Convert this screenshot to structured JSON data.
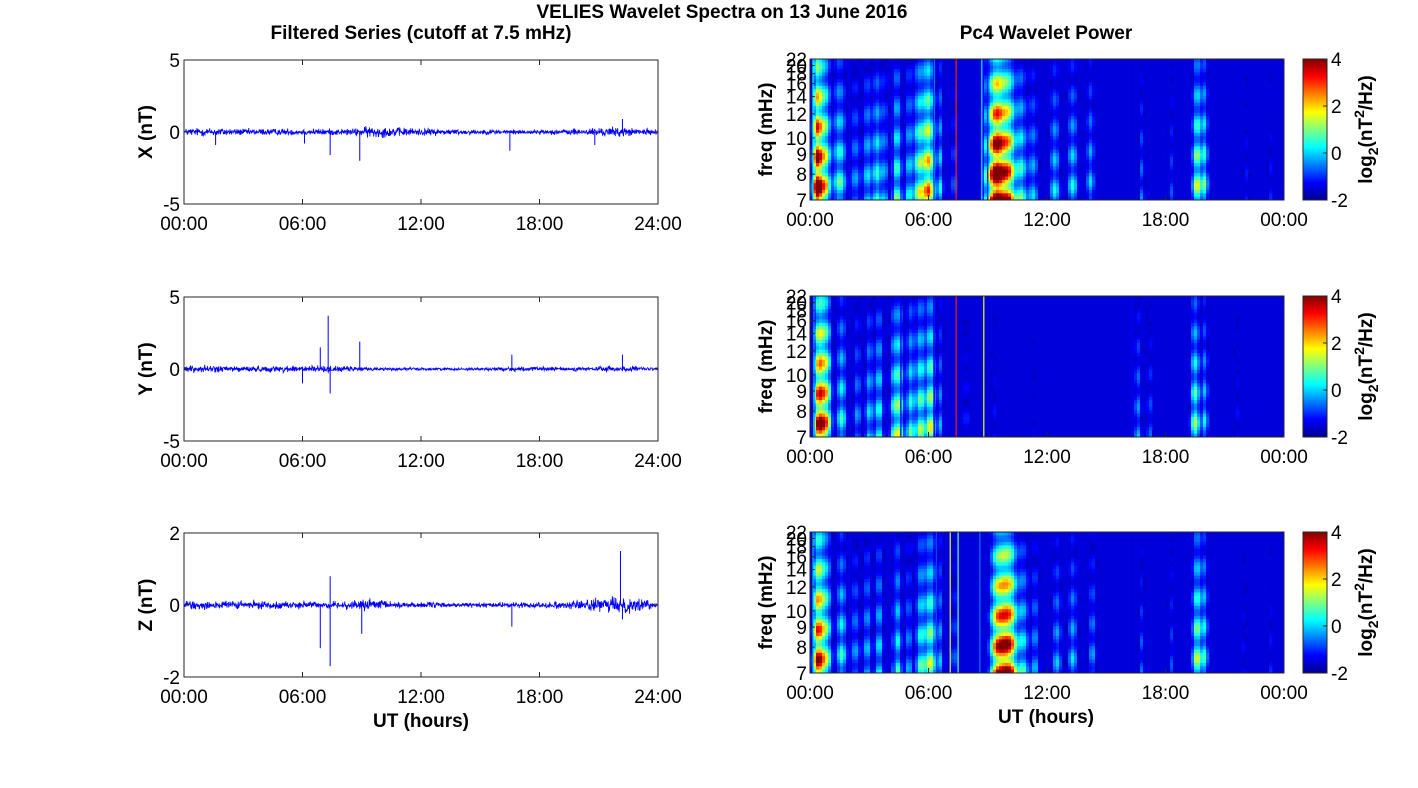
{
  "figure": {
    "title": "VELIES Wavelet Spectra on 13 June 2016",
    "left_title": "Filtered Series (cutoff at 7.5 mHz)",
    "right_title": "Pc4 Wavelet Power",
    "xlabel": "UT (hours)"
  },
  "chart_data": [
    {
      "type": "line",
      "panel": "left",
      "ylabel": "X (nT)",
      "ylim": [
        -5,
        5
      ],
      "yticks": [
        5,
        0,
        -5
      ],
      "xticks": [
        "00:00",
        "06:00",
        "12:00",
        "18:00",
        "24:00"
      ],
      "xlim_hours": [
        0,
        24
      ],
      "color": "#0000ff",
      "amplitude_envelope": [
        [
          0,
          0.35
        ],
        [
          1.5,
          0.4
        ],
        [
          3,
          0.3
        ],
        [
          6,
          0.3
        ],
        [
          8.5,
          0.3
        ],
        [
          9.5,
          0.55
        ],
        [
          11,
          0.4
        ],
        [
          14,
          0.25
        ],
        [
          18,
          0.2
        ],
        [
          20,
          0.3
        ],
        [
          22,
          0.45
        ],
        [
          24,
          0.2
        ]
      ],
      "spikes": [
        [
          1.6,
          -0.9
        ],
        [
          6.1,
          -0.8
        ],
        [
          7.4,
          -1.6
        ],
        [
          8.9,
          -2.0
        ],
        [
          16.5,
          -1.3
        ],
        [
          20.8,
          -0.9
        ],
        [
          22.2,
          0.9
        ]
      ]
    },
    {
      "type": "line",
      "panel": "left",
      "ylabel": "Y (nT)",
      "ylim": [
        -5,
        5
      ],
      "yticks": [
        5,
        0,
        -5
      ],
      "xticks": [
        "00:00",
        "06:00",
        "12:00",
        "18:00",
        "24:00"
      ],
      "xlim_hours": [
        0,
        24
      ],
      "color": "#0000ff",
      "amplitude_envelope": [
        [
          0,
          0.35
        ],
        [
          2,
          0.3
        ],
        [
          4,
          0.25
        ],
        [
          6,
          0.35
        ],
        [
          8,
          0.25
        ],
        [
          10,
          0.15
        ],
        [
          14,
          0.12
        ],
        [
          17,
          0.2
        ],
        [
          20,
          0.18
        ],
        [
          22,
          0.3
        ],
        [
          24,
          0.12
        ]
      ],
      "spikes": [
        [
          6.0,
          -1.0
        ],
        [
          6.9,
          1.5
        ],
        [
          7.3,
          3.7
        ],
        [
          7.4,
          -1.7
        ],
        [
          8.9,
          1.9
        ],
        [
          16.6,
          1.0
        ],
        [
          22.2,
          1.0
        ]
      ]
    },
    {
      "type": "line",
      "panel": "left",
      "ylabel": "Z (nT)",
      "ylim": [
        -2,
        2
      ],
      "yticks": [
        2,
        0,
        -2
      ],
      "xticks": [
        "00:00",
        "06:00",
        "12:00",
        "18:00",
        "24:00"
      ],
      "xlim_hours": [
        0,
        24
      ],
      "color": "#0000ff",
      "amplitude_envelope": [
        [
          0,
          0.18
        ],
        [
          2,
          0.16
        ],
        [
          4,
          0.14
        ],
        [
          6,
          0.13
        ],
        [
          8,
          0.12
        ],
        [
          9.5,
          0.22
        ],
        [
          11,
          0.12
        ],
        [
          14,
          0.08
        ],
        [
          18,
          0.1
        ],
        [
          20,
          0.18
        ],
        [
          21.5,
          0.25
        ],
        [
          22.3,
          0.35
        ],
        [
          24,
          0.08
        ]
      ],
      "spikes": [
        [
          6.9,
          -1.2
        ],
        [
          7.4,
          0.8
        ],
        [
          7.4,
          -1.7
        ],
        [
          9.0,
          -0.8
        ],
        [
          16.6,
          -0.6
        ],
        [
          22.1,
          1.5
        ],
        [
          22.2,
          -0.4
        ]
      ]
    },
    {
      "type": "heatmap",
      "panel": "right",
      "ylabel": "freq (mHz)",
      "ylim": [
        7,
        22
      ],
      "yticks": [
        22,
        20,
        18,
        16,
        14,
        12,
        10,
        9,
        8,
        7
      ],
      "xlim_hours": [
        0,
        24
      ],
      "xticks": [
        "00:00",
        "06:00",
        "12:00",
        "18:00",
        "00:00"
      ],
      "colorbar": {
        "label": "log2(nT2/Hz)",
        "range": [
          -2,
          4
        ],
        "ticks": [
          4,
          2,
          0,
          -2
        ]
      },
      "background": -2,
      "streaks": [
        [
          0.3,
          0.35,
          2.5
        ],
        [
          0.5,
          0.5,
          3.5
        ],
        [
          0.85,
          0.4,
          2.0
        ],
        [
          1.5,
          0.6,
          2.0
        ],
        [
          2.3,
          0.5,
          1.2
        ],
        [
          2.9,
          0.4,
          1.5
        ],
        [
          3.4,
          0.45,
          1.8
        ],
        [
          3.8,
          0.3,
          1.2
        ],
        [
          4.4,
          0.45,
          2.0
        ],
        [
          5.0,
          0.35,
          1.5
        ],
        [
          5.5,
          0.5,
          2.2
        ],
        [
          6.0,
          0.55,
          3.2
        ],
        [
          6.6,
          0.3,
          1.5
        ],
        [
          7.3,
          0.3,
          1.0
        ],
        [
          8.9,
          0.35,
          1.2
        ],
        [
          9.3,
          0.6,
          2.5
        ],
        [
          9.6,
          0.75,
          3.8
        ],
        [
          10.1,
          0.6,
          2.8
        ],
        [
          10.7,
          0.5,
          1.8
        ],
        [
          11.3,
          0.5,
          1.3
        ],
        [
          12.4,
          0.5,
          1.5
        ],
        [
          13.3,
          0.5,
          1.6
        ],
        [
          14.2,
          0.4,
          1.4
        ],
        [
          16.8,
          0.3,
          1.0
        ],
        [
          18.3,
          0.3,
          0.8
        ],
        [
          19.6,
          0.45,
          2.5
        ],
        [
          20.0,
          0.3,
          1.8
        ],
        [
          22.1,
          0.3,
          0.6
        ],
        [
          23.3,
          0.3,
          0.6
        ]
      ],
      "lines": [
        [
          0.15,
          1.5
        ],
        [
          2.0,
          0.5
        ],
        [
          4.2,
          0.5
        ],
        [
          6.3,
          1.0
        ],
        [
          7.4,
          3.5
        ],
        [
          8.7,
          1.5
        ],
        [
          9.0,
          0.5
        ],
        [
          16.3,
          0.3
        ]
      ]
    },
    {
      "type": "heatmap",
      "panel": "right",
      "ylabel": "freq (mHz)",
      "ylim": [
        7,
        22
      ],
      "yticks": [
        22,
        20,
        18,
        16,
        14,
        12,
        10,
        9,
        8,
        7
      ],
      "xlim_hours": [
        0,
        24
      ],
      "xticks": [
        "00:00",
        "06:00",
        "12:00",
        "18:00",
        "00:00"
      ],
      "colorbar": {
        "label": "log2(nT2/Hz)",
        "range": [
          -2,
          4
        ],
        "ticks": [
          4,
          2,
          0,
          -2
        ]
      },
      "background": -2,
      "streaks": [
        [
          0.35,
          0.4,
          2.5
        ],
        [
          0.6,
          0.45,
          3.2
        ],
        [
          0.9,
          0.4,
          2.2
        ],
        [
          1.6,
          0.5,
          1.8
        ],
        [
          2.4,
          0.4,
          1.2
        ],
        [
          3.0,
          0.4,
          1.5
        ],
        [
          3.5,
          0.4,
          1.8
        ],
        [
          4.2,
          0.35,
          1.2
        ],
        [
          4.5,
          0.45,
          2.2
        ],
        [
          5.1,
          0.4,
          1.8
        ],
        [
          5.6,
          0.45,
          2.2
        ],
        [
          6.1,
          0.4,
          2.6
        ],
        [
          6.6,
          0.3,
          1.2
        ],
        [
          7.9,
          0.25,
          0.8
        ],
        [
          9.3,
          0.3,
          0.6
        ],
        [
          11.3,
          0.25,
          0.4
        ],
        [
          16.6,
          0.35,
          1.2
        ],
        [
          17.2,
          0.3,
          0.9
        ],
        [
          19.5,
          0.45,
          2.2
        ],
        [
          20.0,
          0.3,
          1.5
        ],
        [
          21.6,
          0.3,
          0.6
        ]
      ],
      "lines": [
        [
          0.2,
          1.0
        ],
        [
          2.0,
          0.4
        ],
        [
          4.6,
          0.5
        ],
        [
          6.3,
          0.6
        ],
        [
          7.4,
          3.5
        ],
        [
          8.8,
          2.5
        ],
        [
          16.3,
          0.5
        ]
      ]
    },
    {
      "type": "heatmap",
      "panel": "right",
      "ylabel": "freq (mHz)",
      "ylim": [
        7,
        22
      ],
      "yticks": [
        22,
        20,
        18,
        16,
        14,
        12,
        10,
        9,
        8,
        7
      ],
      "xlim_hours": [
        0,
        24
      ],
      "xticks": [
        "00:00",
        "06:00",
        "12:00",
        "18:00",
        "00:00"
      ],
      "colorbar": {
        "label": "log2(nT2/Hz)",
        "range": [
          -2,
          4
        ],
        "ticks": [
          4,
          2,
          0,
          -2
        ]
      },
      "background": -2,
      "streaks": [
        [
          0.3,
          0.35,
          2.4
        ],
        [
          0.55,
          0.45,
          3.2
        ],
        [
          0.9,
          0.4,
          1.8
        ],
        [
          1.6,
          0.5,
          1.8
        ],
        [
          2.3,
          0.45,
          1.2
        ],
        [
          2.9,
          0.4,
          1.4
        ],
        [
          3.5,
          0.4,
          1.6
        ],
        [
          4.4,
          0.45,
          1.8
        ],
        [
          5.0,
          0.35,
          1.2
        ],
        [
          5.6,
          0.45,
          1.8
        ],
        [
          6.1,
          0.5,
          2.4
        ],
        [
          6.6,
          0.3,
          1.2
        ],
        [
          7.3,
          0.3,
          1.0
        ],
        [
          9.4,
          0.6,
          2.4
        ],
        [
          9.8,
          0.7,
          3.4
        ],
        [
          10.2,
          0.6,
          2.6
        ],
        [
          10.8,
          0.5,
          1.6
        ],
        [
          11.4,
          0.4,
          1.2
        ],
        [
          12.5,
          0.45,
          1.3
        ],
        [
          13.3,
          0.45,
          1.4
        ],
        [
          14.3,
          0.4,
          1.2
        ],
        [
          16.8,
          0.3,
          0.9
        ],
        [
          18.3,
          0.3,
          0.8
        ],
        [
          19.6,
          0.45,
          2.4
        ],
        [
          20.0,
          0.3,
          1.6
        ],
        [
          22.0,
          0.3,
          0.6
        ],
        [
          23.3,
          0.3,
          0.6
        ]
      ],
      "lines": [
        [
          0.15,
          1.2
        ],
        [
          2.0,
          0.5
        ],
        [
          4.3,
          0.5
        ],
        [
          6.4,
          0.8
        ],
        [
          7.1,
          2.5
        ],
        [
          7.5,
          2.0
        ],
        [
          8.6,
          1.0
        ],
        [
          16.3,
          0.3
        ]
      ]
    }
  ]
}
